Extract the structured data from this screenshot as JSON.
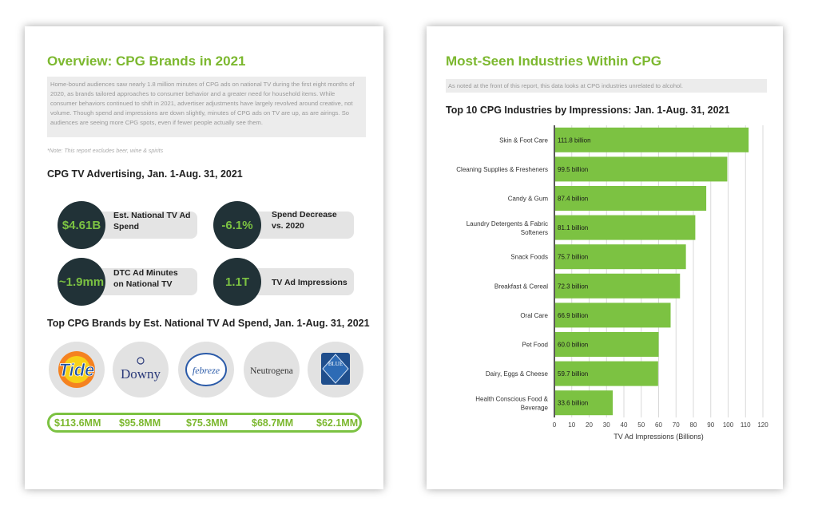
{
  "left_page": {
    "title": "Overview: CPG Brands in 2021",
    "intro_text": "Home-bound audiences saw nearly 1.8 million minutes of CPG ads on national TV during the first eight months of 2020, as brands tailored approaches to consumer behavior and a greater need for household items. While consumer behaviors continued to shift in 2021, advertiser adjustments have largely revolved around creative, not volume. Though spend and impressions are down slightly, minutes of CPG ads on TV are up, as are airings. So audiences are seeing more CPG spots, even if fewer people actually see them.",
    "note": "*Note: This report excludes beer, wine & spirits",
    "stats_title": "CPG TV Advertising, Jan. 1-Aug. 31, 2021",
    "stats": [
      {
        "value": "$4.61B",
        "label": "Est. National TV Ad\nSpend"
      },
      {
        "value": "-6.1%",
        "label": "Spend Decrease\nvs. 2020"
      },
      {
        "value": "~1.9mm",
        "label": "DTC Ad Minutes\non National TV"
      },
      {
        "value": "1.1T",
        "label": "TV Ad Impressions"
      }
    ],
    "brands_title": "Top CPG Brands by Est. National TV Ad Spend, Jan. 1-Aug. 31, 2021",
    "brands": [
      {
        "name": "Tide",
        "spend": "$113.6MM"
      },
      {
        "name": "Downy",
        "spend": "$95.8MM"
      },
      {
        "name": "febreze",
        "spend": "$75.3MM"
      },
      {
        "name": "Neutrogena",
        "spend": "$68.7MM"
      },
      {
        "name": "BLUE",
        "spend": "$62.1MM"
      }
    ],
    "colors": {
      "accent": "#7cc242",
      "dark_circle": "#213237",
      "pill": "#e4e4e4"
    }
  },
  "right_page": {
    "title": "Most-Seen Industries Within CPG",
    "note": "As noted at the front of this report, this data looks at CPG industries unrelated to alcohol."
  },
  "chart_data": {
    "type": "bar",
    "orientation": "horizontal",
    "title": "Top 10 CPG Industries by Impressions: Jan. 1-Aug. 31, 2021",
    "xlabel": "TV Ad Impressions (Billions)",
    "ylabel": "",
    "categories": [
      "Skin & Foot Care",
      "Cleaning Supplies & Fresheners",
      "Candy & Gum",
      "Laundry Detergents & Fabric Softeners",
      "Snack Foods",
      "Breakfast & Cereal",
      "Oral Care",
      "Pet Food",
      "Dairy, Eggs & Cheese",
      "Health Conscious Food & Beverage"
    ],
    "values": [
      111.8,
      99.5,
      87.4,
      81.1,
      75.7,
      72.3,
      66.9,
      60.0,
      59.7,
      33.6
    ],
    "data_labels": [
      "111.8 billion",
      "99.5 billion",
      "87.4 billion",
      "81.1 billion",
      "75.7 billion",
      "72.3 billion",
      "66.9 billion",
      "60.0 billion",
      "59.7 billion",
      "33.6 billion"
    ],
    "xlim": [
      0,
      120
    ],
    "xticks": [
      0,
      10,
      20,
      30,
      40,
      50,
      60,
      70,
      80,
      90,
      100,
      110,
      120
    ],
    "grid": true,
    "bar_color": "#7cc242"
  }
}
